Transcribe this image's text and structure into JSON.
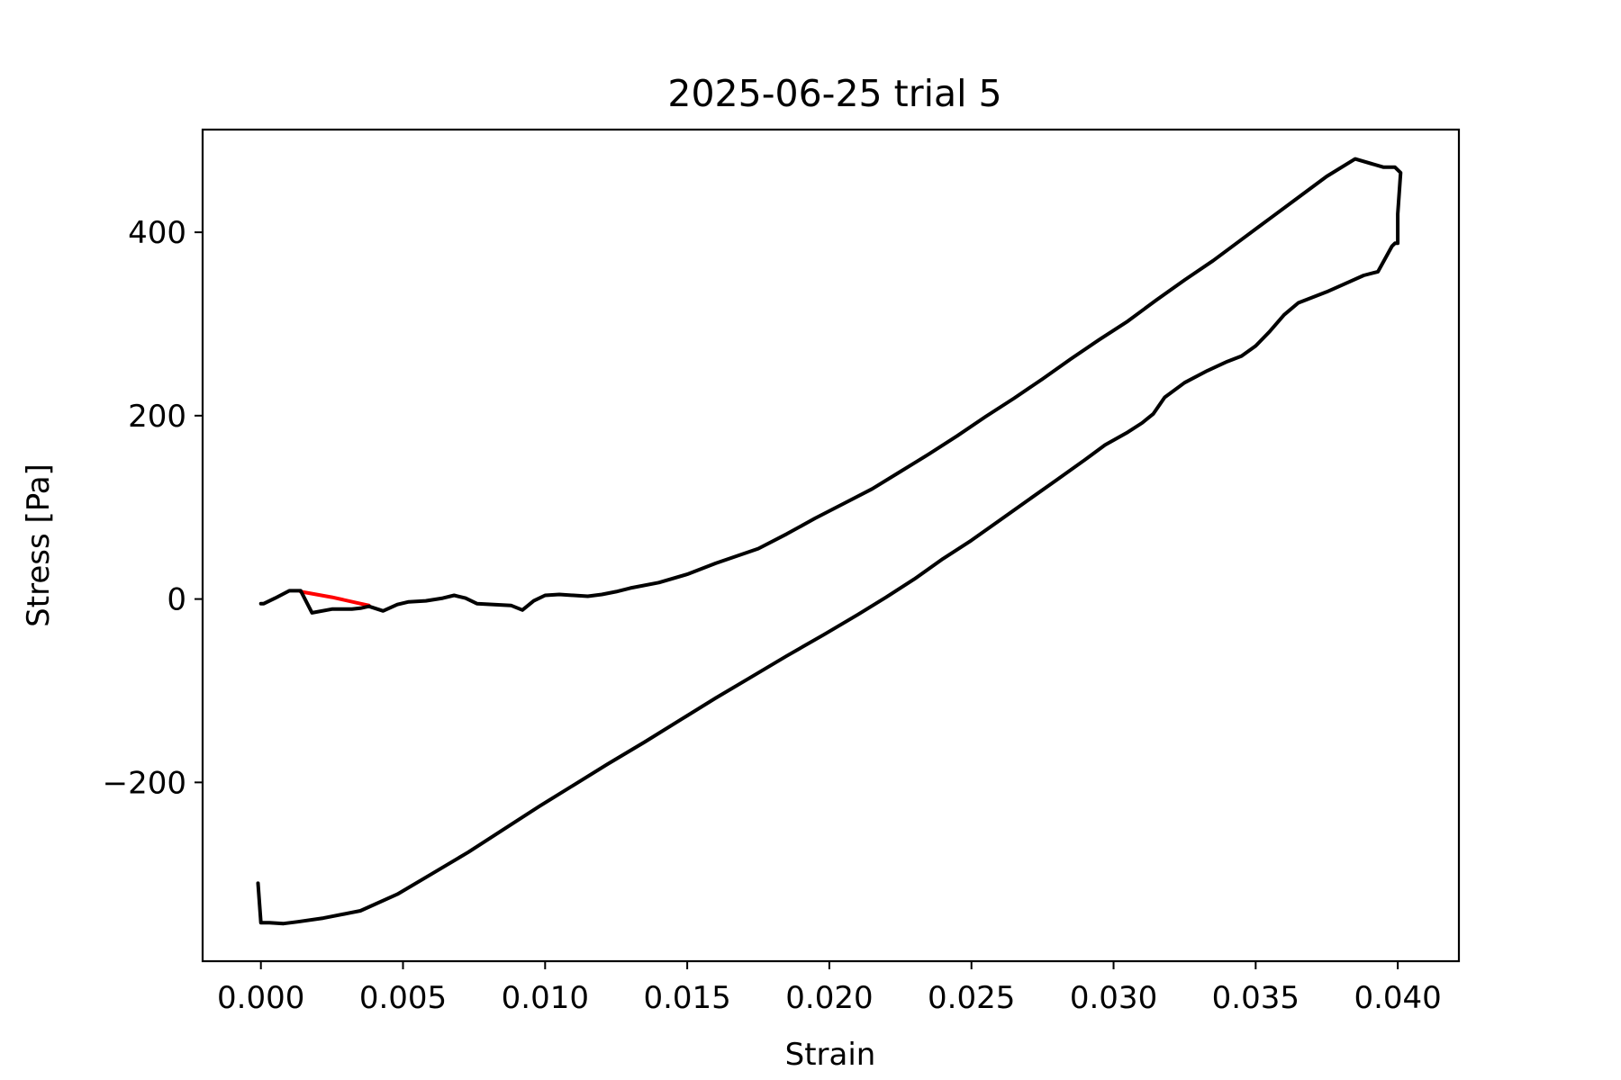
{
  "chart_data": {
    "type": "line",
    "title": "2025-06-25 trial 5",
    "xlabel": "Strain",
    "ylabel": "Stress [Pa]",
    "xlim": [
      -0.00205,
      0.04215
    ],
    "ylim": [
      -395,
      512
    ],
    "xticks": [
      0.0,
      0.005,
      0.01,
      0.015,
      0.02,
      0.025,
      0.03,
      0.035,
      0.04
    ],
    "xtick_labels": [
      "0.000",
      "0.005",
      "0.010",
      "0.015",
      "0.020",
      "0.025",
      "0.030",
      "0.035",
      "0.040"
    ],
    "yticks": [
      -200,
      0,
      200,
      400
    ],
    "ytick_labels": [
      "−200",
      "0",
      "200",
      "400"
    ],
    "grid": false,
    "series": [
      {
        "name": "segment-red",
        "color": "#ff0000",
        "x": [
          0.0014,
          0.0025,
          0.0035,
          0.0038
        ],
        "y": [
          8,
          2,
          -5,
          -7
        ]
      },
      {
        "name": "loop-black",
        "color": "#000000",
        "x": [
          0.0,
          0.0001,
          0.0005,
          0.001,
          0.0014,
          0.0018,
          0.0025,
          0.0032,
          0.0035,
          0.0038,
          0.0043,
          0.0048,
          0.0052,
          0.0058,
          0.0064,
          0.0068,
          0.0072,
          0.0076,
          0.0082,
          0.0088,
          0.0092,
          0.0096,
          0.01,
          0.0105,
          0.011,
          0.0115,
          0.012,
          0.0125,
          0.013,
          0.014,
          0.015,
          0.016,
          0.0175,
          0.0185,
          0.0195,
          0.0205,
          0.0215,
          0.0225,
          0.0235,
          0.0245,
          0.0255,
          0.0265,
          0.0275,
          0.0285,
          0.0295,
          0.0305,
          0.0315,
          0.0325,
          0.0335,
          0.0345,
          0.0355,
          0.0365,
          0.0375,
          0.0385,
          0.0395,
          0.0399,
          0.0401,
          0.04,
          0.04,
          0.0399,
          0.0398,
          0.0393,
          0.0388,
          0.0383,
          0.0375,
          0.0365,
          0.036,
          0.0355,
          0.035,
          0.0345,
          0.034,
          0.0333,
          0.0325,
          0.0318,
          0.0314,
          0.031,
          0.0305,
          0.0297,
          0.029,
          0.028,
          0.027,
          0.026,
          0.025,
          0.024,
          0.023,
          0.022,
          0.021,
          0.0198,
          0.0185,
          0.0172,
          0.016,
          0.0148,
          0.0135,
          0.0122,
          0.011,
          0.0098,
          0.0085,
          0.0073,
          0.006,
          0.0048,
          0.0035,
          0.0022,
          0.0013,
          0.0008,
          0.0003,
          0.0,
          -0.0001
        ],
        "y": [
          -5,
          -5,
          1,
          9,
          9,
          -15,
          -11,
          -11,
          -10,
          -8,
          -13,
          -6,
          -3,
          -2,
          1,
          4,
          1,
          -5,
          -6,
          -7,
          -12,
          -2,
          4,
          5,
          4,
          3,
          5,
          8,
          12,
          18,
          27,
          39,
          55,
          71,
          88,
          104,
          120,
          139,
          158,
          178,
          199,
          219,
          240,
          262,
          283,
          303,
          326,
          348,
          369,
          392,
          415,
          438,
          461,
          480,
          471,
          471,
          465,
          420,
          388,
          388,
          385,
          357,
          353,
          346,
          335,
          323,
          310,
          292,
          276,
          265,
          259,
          249,
          236,
          220,
          202,
          192,
          182,
          168,
          152,
          130,
          108,
          86,
          64,
          44,
          22,
          2,
          -17,
          -39,
          -62,
          -86,
          -108,
          -131,
          -156,
          -180,
          -203,
          -226,
          -252,
          -276,
          -300,
          -322,
          -340,
          -348,
          -352,
          -354,
          -353,
          -353,
          -310
        ]
      }
    ]
  }
}
